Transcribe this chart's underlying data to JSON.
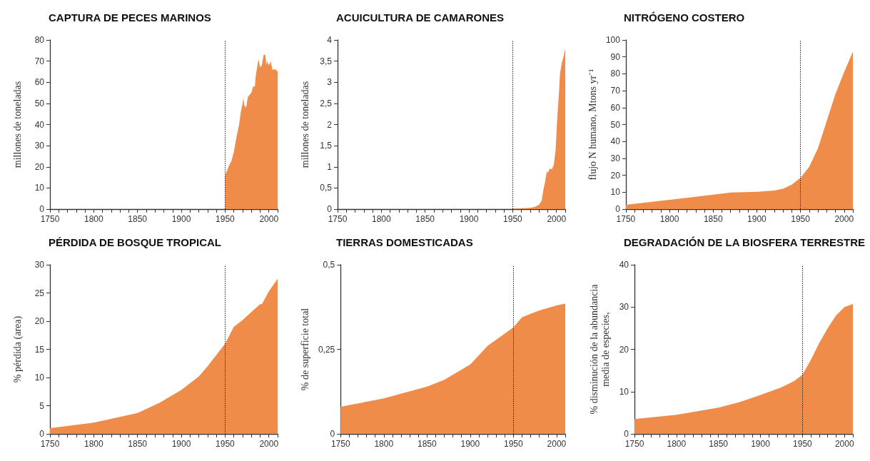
{
  "chart_data": [
    {
      "type": "area",
      "title": "CAPTURA DE PECES MARINOS",
      "ylabel": "millones de toneladas",
      "xlim": [
        1750,
        2010
      ],
      "xticks": [
        1750,
        {
          "value": 1760,
          "label": null
        },
        {
          "value": 1770,
          "label": null
        },
        {
          "value": 1780,
          "label": null
        },
        {
          "value": 1790,
          "label": null
        },
        1800,
        {
          "value": 1810,
          "label": null
        },
        {
          "value": 1820,
          "label": null
        },
        {
          "value": 1830,
          "label": null
        },
        {
          "value": 1840,
          "label": null
        },
        1850,
        {
          "value": 1860,
          "label": null
        },
        {
          "value": 1870,
          "label": null
        },
        {
          "value": 1880,
          "label": null
        },
        {
          "value": 1890,
          "label": null
        },
        1900,
        {
          "value": 1910,
          "label": null
        },
        {
          "value": 1920,
          "label": null
        },
        {
          "value": 1930,
          "label": null
        },
        {
          "value": 1940,
          "label": null
        },
        1950,
        {
          "value": 1960,
          "label": null
        },
        {
          "value": 1970,
          "label": null
        },
        {
          "value": 1980,
          "label": null
        },
        {
          "value": 1990,
          "label": null
        },
        2000,
        {
          "value": 2010,
          "label": null
        }
      ],
      "ylim": [
        0,
        80
      ],
      "yticks": [
        0,
        10,
        20,
        30,
        40,
        50,
        60,
        70,
        80
      ],
      "grid": false,
      "marker": "none",
      "ref_lines": [
        {
          "axis": "x",
          "value": 1950,
          "color": "#222222",
          "line_style": "dotted"
        }
      ],
      "series": [
        {
          "color": "#f08c4a",
          "x": [
            1950,
            1952,
            1955,
            1957,
            1960,
            1963,
            1966,
            1968,
            1970,
            1971,
            1972,
            1974,
            1976,
            1978,
            1980,
            1982,
            1984,
            1985,
            1987,
            1988,
            1990,
            1992,
            1994,
            1996,
            1997,
            1998,
            2000,
            2002,
            2004,
            2008,
            2010
          ],
          "values": [
            16,
            18,
            21,
            22.5,
            27,
            34,
            40,
            46,
            50,
            52.5,
            49,
            48,
            53,
            54,
            55,
            58,
            58,
            63,
            68,
            71,
            67,
            68,
            73,
            73,
            68,
            70,
            68,
            70,
            66,
            66,
            65
          ]
        }
      ]
    },
    {
      "type": "area",
      "title": "ACUICULTURA DE CAMARONES",
      "ylabel": "millones de toneladas",
      "xlim": [
        1750,
        2010
      ],
      "xticks": [
        1750,
        {
          "value": 1760,
          "label": null
        },
        {
          "value": 1770,
          "label": null
        },
        {
          "value": 1780,
          "label": null
        },
        {
          "value": 1790,
          "label": null
        },
        1800,
        {
          "value": 1810,
          "label": null
        },
        {
          "value": 1820,
          "label": null
        },
        {
          "value": 1830,
          "label": null
        },
        {
          "value": 1840,
          "label": null
        },
        1850,
        {
          "value": 1860,
          "label": null
        },
        {
          "value": 1870,
          "label": null
        },
        {
          "value": 1880,
          "label": null
        },
        {
          "value": 1890,
          "label": null
        },
        1900,
        {
          "value": 1910,
          "label": null
        },
        {
          "value": 1920,
          "label": null
        },
        {
          "value": 1930,
          "label": null
        },
        {
          "value": 1940,
          "label": null
        },
        1950,
        {
          "value": 1960,
          "label": null
        },
        {
          "value": 1970,
          "label": null
        },
        {
          "value": 1980,
          "label": null
        },
        {
          "value": 1990,
          "label": null
        },
        2000,
        {
          "value": 2010,
          "label": null
        }
      ],
      "ylim": [
        0,
        4
      ],
      "yticks": [
        0,
        {
          "value": 0.5,
          "label": "0,5"
        },
        1,
        {
          "value": 1.5,
          "label": "1,5"
        },
        2,
        {
          "value": 2.5,
          "label": "2,5"
        },
        3,
        {
          "value": 3.5,
          "label": "3,5"
        },
        4
      ],
      "grid": false,
      "marker": "none",
      "ref_lines": [
        {
          "axis": "x",
          "value": 1950,
          "color": "#222222",
          "line_style": "dotted"
        }
      ],
      "series": [
        {
          "color": "#f08c4a",
          "x": [
            1950,
            1970,
            1975,
            1980,
            1983,
            1985,
            1987,
            1989,
            1990,
            1992,
            1995,
            1997,
            1999,
            2001,
            2003,
            2004,
            2006,
            2008,
            2010
          ],
          "values": [
            0.01,
            0.03,
            0.05,
            0.1,
            0.2,
            0.45,
            0.65,
            0.9,
            0.85,
            0.95,
            0.95,
            1.05,
            1.4,
            2.2,
            2.8,
            3.2,
            3.45,
            3.6,
            3.8
          ]
        }
      ]
    },
    {
      "type": "area",
      "title": "NITRÓGENO COSTERO",
      "ylabel": "flujo N humano, Mtons yr⁻¹",
      "xlim": [
        1750,
        2010
      ],
      "xticks": [
        1750,
        {
          "value": 1760,
          "label": null
        },
        {
          "value": 1770,
          "label": null
        },
        {
          "value": 1780,
          "label": null
        },
        {
          "value": 1790,
          "label": null
        },
        1800,
        {
          "value": 1810,
          "label": null
        },
        {
          "value": 1820,
          "label": null
        },
        {
          "value": 1830,
          "label": null
        },
        {
          "value": 1840,
          "label": null
        },
        1850,
        {
          "value": 1860,
          "label": null
        },
        {
          "value": 1870,
          "label": null
        },
        {
          "value": 1880,
          "label": null
        },
        {
          "value": 1890,
          "label": null
        },
        1900,
        {
          "value": 1910,
          "label": null
        },
        {
          "value": 1920,
          "label": null
        },
        {
          "value": 1930,
          "label": null
        },
        {
          "value": 1940,
          "label": null
        },
        1950,
        {
          "value": 1960,
          "label": null
        },
        {
          "value": 1970,
          "label": null
        },
        {
          "value": 1980,
          "label": null
        },
        {
          "value": 1990,
          "label": null
        },
        2000,
        {
          "value": 2010,
          "label": null
        }
      ],
      "ylim": [
        0,
        100
      ],
      "yticks": [
        0,
        10,
        20,
        30,
        40,
        50,
        60,
        70,
        80,
        90,
        100
      ],
      "grid": false,
      "marker": "none",
      "ref_lines": [
        {
          "axis": "x",
          "value": 1950,
          "color": "#222222",
          "line_style": "dotted"
        }
      ],
      "series": [
        {
          "color": "#f08c4a",
          "x": [
            1750,
            1775,
            1800,
            1825,
            1850,
            1870,
            1900,
            1920,
            1930,
            1940,
            1950,
            1960,
            1970,
            1980,
            1990,
            2000,
            2010
          ],
          "values": [
            2.5,
            4,
            5.5,
            7,
            8.5,
            9.8,
            10.2,
            11,
            12,
            14.5,
            18.5,
            25,
            36,
            52,
            68,
            81,
            93
          ]
        }
      ]
    },
    {
      "type": "area",
      "title": "PÉRDIDA DE BOSQUE TROPICAL",
      "ylabel": "% pérdida (area)",
      "xlim": [
        1750,
        2010
      ],
      "xticks": [
        1750,
        {
          "value": 1760,
          "label": null
        },
        {
          "value": 1770,
          "label": null
        },
        {
          "value": 1780,
          "label": null
        },
        {
          "value": 1790,
          "label": null
        },
        1800,
        {
          "value": 1810,
          "label": null
        },
        {
          "value": 1820,
          "label": null
        },
        {
          "value": 1830,
          "label": null
        },
        {
          "value": 1840,
          "label": null
        },
        1850,
        {
          "value": 1860,
          "label": null
        },
        {
          "value": 1870,
          "label": null
        },
        {
          "value": 1880,
          "label": null
        },
        {
          "value": 1890,
          "label": null
        },
        1900,
        {
          "value": 1910,
          "label": null
        },
        {
          "value": 1920,
          "label": null
        },
        {
          "value": 1930,
          "label": null
        },
        {
          "value": 1940,
          "label": null
        },
        1950,
        {
          "value": 1960,
          "label": null
        },
        {
          "value": 1970,
          "label": null
        },
        {
          "value": 1980,
          "label": null
        },
        {
          "value": 1990,
          "label": null
        },
        2000,
        {
          "value": 2010,
          "label": null
        }
      ],
      "ylim": [
        0,
        30
      ],
      "yticks": [
        0,
        5,
        10,
        15,
        20,
        25,
        30
      ],
      "grid": false,
      "marker": "none",
      "ref_lines": [
        {
          "axis": "x",
          "value": 1950,
          "color": "#222222",
          "line_style": "dotted"
        }
      ],
      "series": [
        {
          "color": "#f08c4a",
          "x": [
            1750,
            1800,
            1850,
            1875,
            1900,
            1920,
            1930,
            1940,
            1950,
            1960,
            1970,
            1980,
            1990,
            1992,
            2000,
            2010
          ],
          "values": [
            1,
            2,
            3.7,
            5.5,
            7.8,
            10.2,
            12,
            14,
            16,
            19,
            20.2,
            21.6,
            23,
            23,
            25.3,
            27.5
          ]
        }
      ]
    },
    {
      "type": "area",
      "title": "TIERRAS DOMESTICADAS",
      "ylabel": "% de superficie total",
      "xlim": [
        1750,
        2010
      ],
      "xticks": [
        1750,
        {
          "value": 1760,
          "label": null
        },
        {
          "value": 1770,
          "label": null
        },
        {
          "value": 1780,
          "label": null
        },
        {
          "value": 1790,
          "label": null
        },
        1800,
        {
          "value": 1810,
          "label": null
        },
        {
          "value": 1820,
          "label": null
        },
        {
          "value": 1830,
          "label": null
        },
        {
          "value": 1840,
          "label": null
        },
        1850,
        {
          "value": 1860,
          "label": null
        },
        {
          "value": 1870,
          "label": null
        },
        {
          "value": 1880,
          "label": null
        },
        {
          "value": 1890,
          "label": null
        },
        1900,
        {
          "value": 1910,
          "label": null
        },
        {
          "value": 1920,
          "label": null
        },
        {
          "value": 1930,
          "label": null
        },
        {
          "value": 1940,
          "label": null
        },
        1950,
        {
          "value": 1960,
          "label": null
        },
        {
          "value": 1970,
          "label": null
        },
        {
          "value": 1980,
          "label": null
        },
        {
          "value": 1990,
          "label": null
        },
        2000,
        {
          "value": 2010,
          "label": null
        }
      ],
      "ylim": [
        0,
        0.5
      ],
      "yticks": [
        0,
        {
          "value": 0.25,
          "label": "0,25"
        },
        {
          "value": 0.5,
          "label": "0,5"
        }
      ],
      "grid": false,
      "marker": "none",
      "ref_lines": [
        {
          "axis": "x",
          "value": 1950,
          "color": "#222222",
          "line_style": "dotted"
        }
      ],
      "series": [
        {
          "color": "#f08c4a",
          "x": [
            1750,
            1800,
            1850,
            1870,
            1900,
            1920,
            1950,
            1960,
            1970,
            1980,
            2000,
            2010
          ],
          "values": [
            0.08,
            0.105,
            0.14,
            0.16,
            0.205,
            0.26,
            0.315,
            0.345,
            0.355,
            0.365,
            0.38,
            0.385
          ]
        }
      ]
    },
    {
      "type": "area",
      "title": "DEGRADACIÓN DE LA BIOSFERA TERRESTRE",
      "ylabel": "% disminución de la abundancia\nmedia de especies,",
      "xlim": [
        1750,
        2010
      ],
      "xticks": [
        1750,
        {
          "value": 1760,
          "label": null
        },
        {
          "value": 1770,
          "label": null
        },
        {
          "value": 1780,
          "label": null
        },
        {
          "value": 1790,
          "label": null
        },
        1800,
        {
          "value": 1810,
          "label": null
        },
        {
          "value": 1820,
          "label": null
        },
        {
          "value": 1830,
          "label": null
        },
        {
          "value": 1840,
          "label": null
        },
        1850,
        {
          "value": 1860,
          "label": null
        },
        {
          "value": 1870,
          "label": null
        },
        {
          "value": 1880,
          "label": null
        },
        {
          "value": 1890,
          "label": null
        },
        1900,
        {
          "value": 1910,
          "label": null
        },
        {
          "value": 1920,
          "label": null
        },
        {
          "value": 1930,
          "label": null
        },
        {
          "value": 1940,
          "label": null
        },
        1950,
        {
          "value": 1960,
          "label": null
        },
        {
          "value": 1970,
          "label": null
        },
        {
          "value": 1980,
          "label": null
        },
        {
          "value": 1990,
          "label": null
        },
        2000,
        {
          "value": 2010,
          "label": null
        }
      ],
      "ylim": [
        0,
        40
      ],
      "yticks": [
        0,
        10,
        20,
        30,
        40
      ],
      "grid": false,
      "marker": "none",
      "ref_lines": [
        {
          "axis": "x",
          "value": 1950,
          "color": "#222222",
          "line_style": "dotted"
        }
      ],
      "series": [
        {
          "color": "#f08c4a",
          "x": [
            1750,
            1800,
            1850,
            1875,
            1900,
            1925,
            1940,
            1950,
            1960,
            1970,
            1980,
            1990,
            2000,
            2010
          ],
          "values": [
            3.5,
            4.5,
            6.2,
            7.5,
            9.2,
            11,
            12.5,
            14,
            17.5,
            21.5,
            25,
            28,
            30,
            30.7
          ]
        }
      ]
    }
  ]
}
